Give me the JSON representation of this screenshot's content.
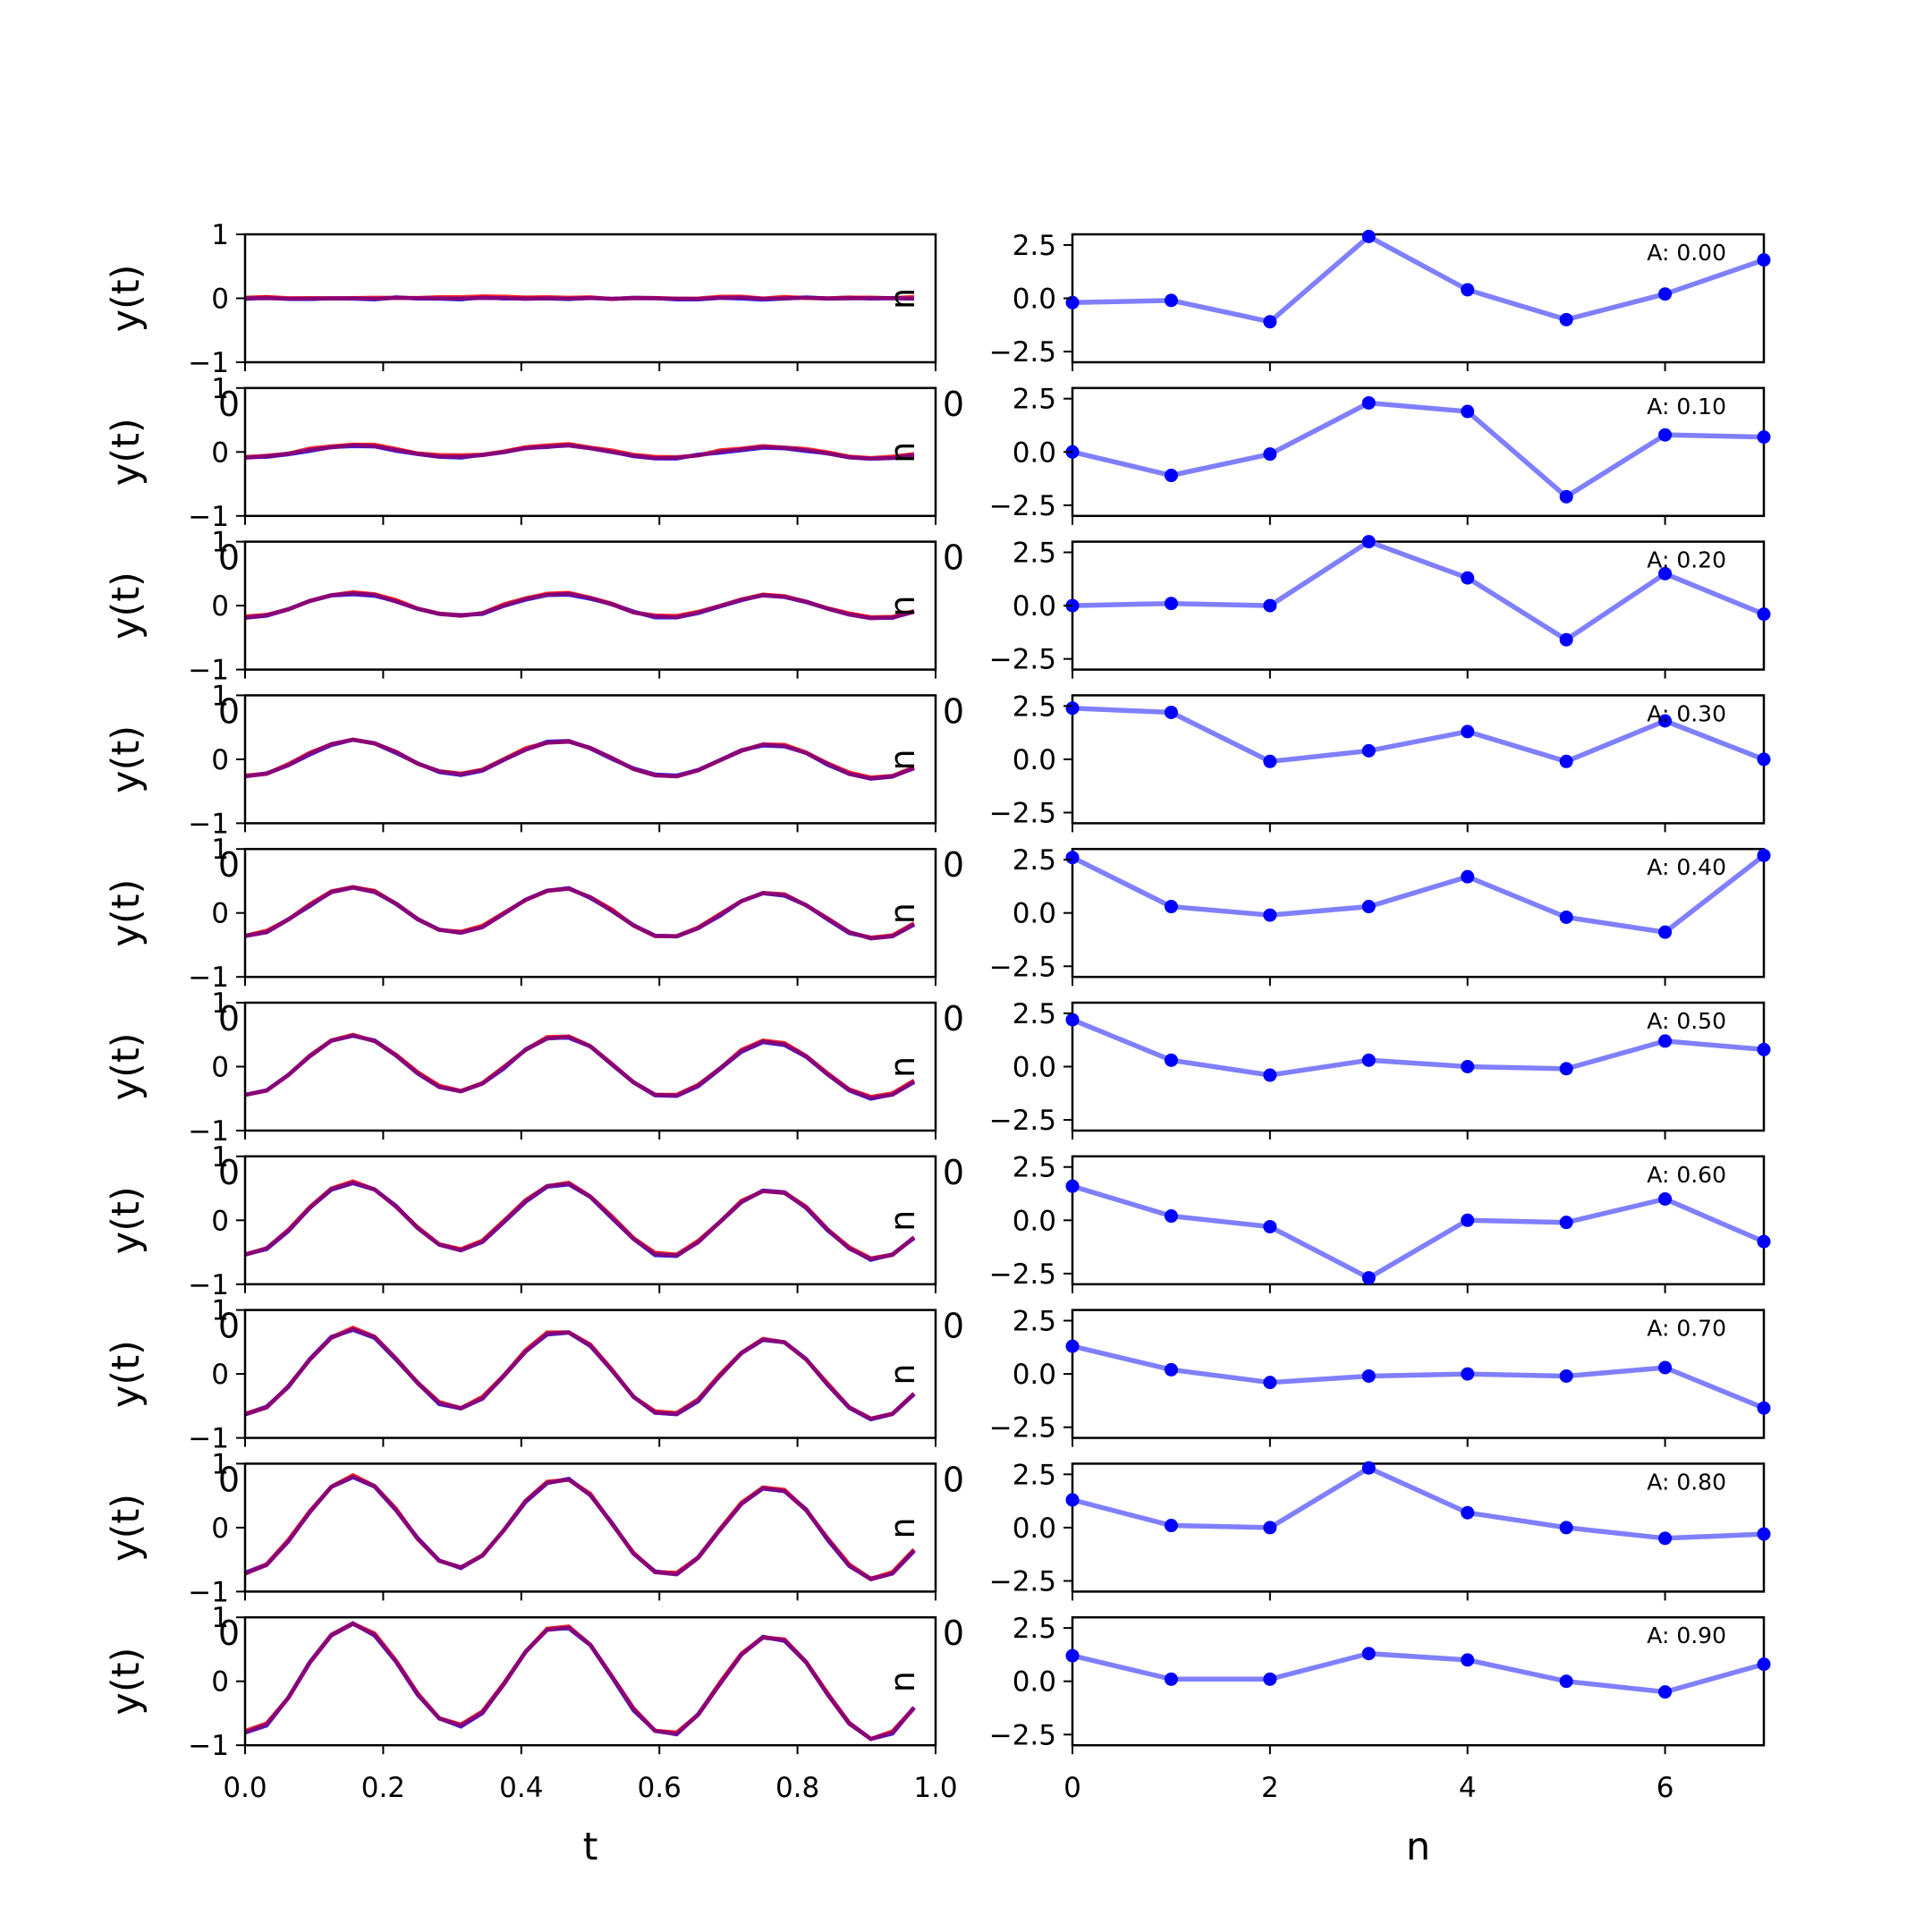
{
  "colors": {
    "blue": "#0000ff",
    "red": "#ff0000",
    "purple": "#800080",
    "lightblue": "#7f7fff"
  },
  "left_xlabel": "t",
  "right_xlabel": "n",
  "left_ylabel": "y(t)",
  "left_xticks": [
    "0.0",
    "0.2",
    "0.4",
    "0.6",
    "0.8",
    "1.0"
  ],
  "right_xticks": [
    "0",
    "2",
    "4",
    "6"
  ],
  "left_yticks": [
    "1",
    "0",
    "−1"
  ],
  "right_yticks": [
    "2.5",
    "0.0",
    "−2.5"
  ],
  "ghost_zero": "0",
  "ghost_n": "n",
  "chart_data": [
    {
      "type": "line",
      "panel": "left",
      "x": [
        0,
        0.03125,
        0.0625,
        0.09375,
        0.125,
        0.15625,
        0.1875,
        0.21875,
        0.25,
        0.28125,
        0.3125,
        0.34375,
        0.375,
        0.40625,
        0.4375,
        0.46875,
        0.5,
        0.53125,
        0.5625,
        0.59375,
        0.625,
        0.65625,
        0.6875,
        0.71875,
        0.75,
        0.78125,
        0.8125,
        0.84375,
        0.875,
        0.90625,
        0.9375,
        0.96875
      ],
      "xlabel": "t",
      "ylabel": "y(t)",
      "xlim": [
        0,
        1
      ],
      "ylim": [
        -1,
        1
      ],
      "series_note": "three overlapping traces (blue, red, purple); amplitude A grows from 0.0 to 0.9 over ten stacked panels",
      "amplitudes": [
        0.0,
        0.1,
        0.2,
        0.3,
        0.4,
        0.5,
        0.6,
        0.7,
        0.8,
        0.9
      ]
    },
    {
      "type": "line",
      "panel": "right",
      "xlabel": "n",
      "xlim": [
        0,
        7
      ],
      "ylim": [
        -3,
        3
      ],
      "x": [
        0,
        1,
        2,
        3,
        4,
        5,
        6,
        7
      ],
      "series": [
        {
          "annotation": "A: 0.00",
          "values": [
            -0.2,
            -0.1,
            -1.1,
            2.9,
            0.4,
            -1.0,
            0.2,
            1.8
          ]
        },
        {
          "annotation": "A: 0.10",
          "values": [
            0.0,
            -1.1,
            -0.1,
            2.3,
            1.9,
            -2.1,
            0.8,
            0.7
          ]
        },
        {
          "annotation": "A: 0.20",
          "values": [
            0.0,
            0.1,
            0.0,
            3.0,
            1.3,
            -1.6,
            1.5,
            -0.4
          ]
        },
        {
          "annotation": "A: 0.30",
          "values": [
            2.4,
            2.2,
            -0.1,
            0.4,
            1.3,
            -0.1,
            1.8,
            0.0
          ]
        },
        {
          "annotation": "A: 0.40",
          "values": [
            2.6,
            0.3,
            -0.1,
            0.3,
            1.7,
            -0.2,
            -0.9,
            2.7
          ]
        },
        {
          "annotation": "A: 0.50",
          "values": [
            2.2,
            0.3,
            -0.4,
            0.3,
            0.0,
            -0.1,
            1.2,
            0.8
          ]
        },
        {
          "annotation": "A: 0.60",
          "values": [
            1.6,
            0.2,
            -0.3,
            -2.7,
            0.0,
            -0.1,
            1.0,
            -1.0
          ]
        },
        {
          "annotation": "A: 0.70",
          "values": [
            1.3,
            0.2,
            -0.4,
            -0.1,
            0.0,
            -0.1,
            0.3,
            -1.6
          ]
        },
        {
          "annotation": "A: 0.80",
          "values": [
            1.3,
            0.1,
            0.0,
            2.8,
            0.7,
            0.0,
            -0.5,
            -0.3
          ]
        },
        {
          "annotation": "A: 0.90",
          "values": [
            1.2,
            0.1,
            0.1,
            1.3,
            1.0,
            0.0,
            -0.5,
            0.8
          ]
        }
      ]
    }
  ]
}
